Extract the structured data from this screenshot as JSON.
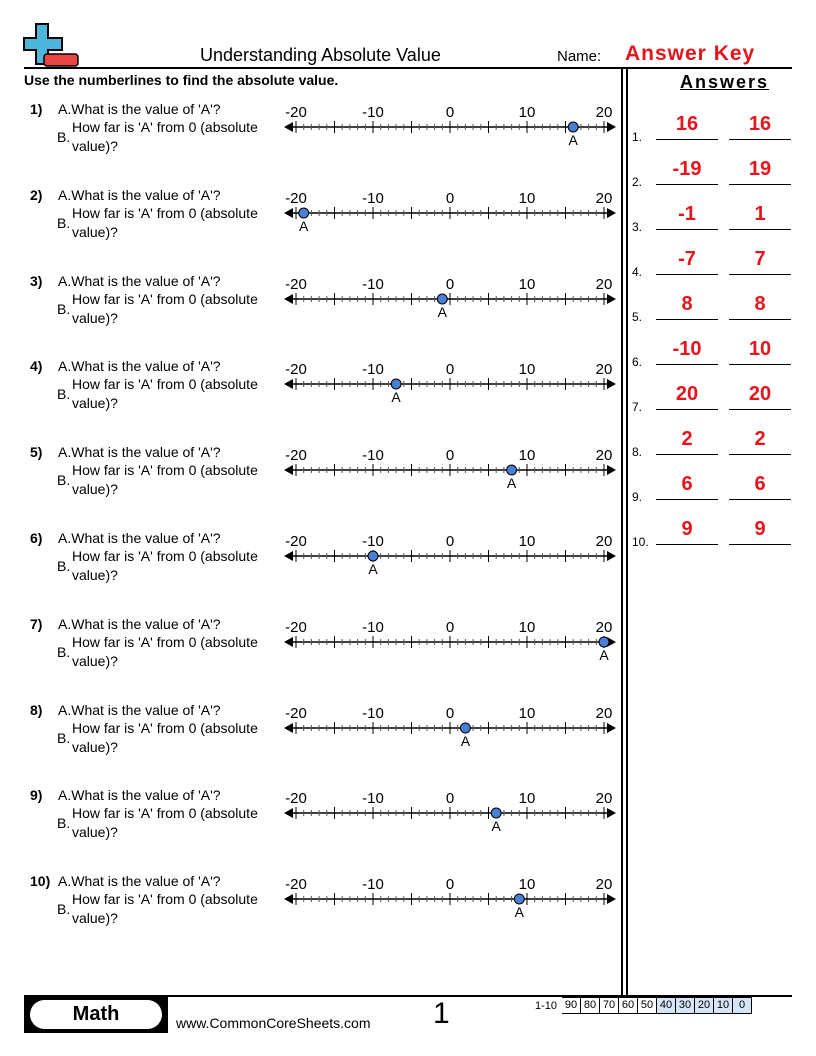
{
  "header": {
    "title": "Understanding Absolute Value",
    "name_label": "Name:",
    "name_value": "Answer Key"
  },
  "instructions": "Use the numberlines to find the absolute value.",
  "answers_title": "Answers",
  "numberline": {
    "min": -20,
    "max": 20,
    "tick_labels": [
      "-20",
      "-10",
      "0",
      "10",
      "20"
    ],
    "point_label": "A",
    "point_color": "#4a7fd6"
  },
  "problems": [
    {
      "num": "1)",
      "qa": "A.What is the value of 'A'?",
      "qb_prefix": "B.",
      "qb1": "How far is 'A' from 0 (absolute",
      "qb2": "value)?",
      "value": 16
    },
    {
      "num": "2)",
      "qa": "A.What is the value of 'A'?",
      "qb_prefix": "B.",
      "qb1": "How far is 'A' from 0 (absolute",
      "qb2": "value)?",
      "value": -19
    },
    {
      "num": "3)",
      "qa": "A.What is the value of 'A'?",
      "qb_prefix": "B.",
      "qb1": "How far is 'A' from 0 (absolute",
      "qb2": "value)?",
      "value": -1
    },
    {
      "num": "4)",
      "qa": "A.What is the value of 'A'?",
      "qb_prefix": "B.",
      "qb1": "How far is 'A' from 0 (absolute",
      "qb2": "value)?",
      "value": -7
    },
    {
      "num": "5)",
      "qa": "A.What is the value of 'A'?",
      "qb_prefix": "B.",
      "qb1": "How far is 'A' from 0 (absolute",
      "qb2": "value)?",
      "value": 8
    },
    {
      "num": "6)",
      "qa": "A.What is the value of 'A'?",
      "qb_prefix": "B.",
      "qb1": "How far is 'A' from 0 (absolute",
      "qb2": "value)?",
      "value": -10
    },
    {
      "num": "7)",
      "qa": "A.What is the value of 'A'?",
      "qb_prefix": "B.",
      "qb1": "How far is 'A' from 0 (absolute",
      "qb2": "value)?",
      "value": 20
    },
    {
      "num": "8)",
      "qa": "A.What is the value of 'A'?",
      "qb_prefix": "B.",
      "qb1": "How far is 'A' from 0 (absolute",
      "qb2": "value)?",
      "value": 2
    },
    {
      "num": "9)",
      "qa": "A.What is the value of 'A'?",
      "qb_prefix": "B.",
      "qb1": "How far is 'A' from 0 (absolute",
      "qb2": "value)?",
      "value": 6
    },
    {
      "num": "10)",
      "qa": "A.What is the value of 'A'?",
      "qb_prefix": "B.",
      "qb1": "How far is 'A' from 0 (absolute",
      "qb2": "value)?",
      "value": 9
    }
  ],
  "answers": [
    {
      "n": "1.",
      "a": "16",
      "b": "16"
    },
    {
      "n": "2.",
      "a": "-19",
      "b": "19"
    },
    {
      "n": "3.",
      "a": "-1",
      "b": "1"
    },
    {
      "n": "4.",
      "a": "-7",
      "b": "7"
    },
    {
      "n": "5.",
      "a": "8",
      "b": "8"
    },
    {
      "n": "6.",
      "a": "-10",
      "b": "10"
    },
    {
      "n": "7.",
      "a": "20",
      "b": "20"
    },
    {
      "n": "8.",
      "a": "2",
      "b": "2"
    },
    {
      "n": "9.",
      "a": "6",
      "b": "6"
    },
    {
      "n": "10.",
      "a": "9",
      "b": "9"
    }
  ],
  "footer": {
    "subject": "Math",
    "site": "www.CommonCoreSheets.com",
    "page": "1",
    "score_label": "1-10",
    "scores": [
      "90",
      "80",
      "70",
      "60",
      "50",
      "40",
      "30",
      "20",
      "10",
      "0"
    ],
    "score_highlight_color": "#d6e4f7"
  }
}
